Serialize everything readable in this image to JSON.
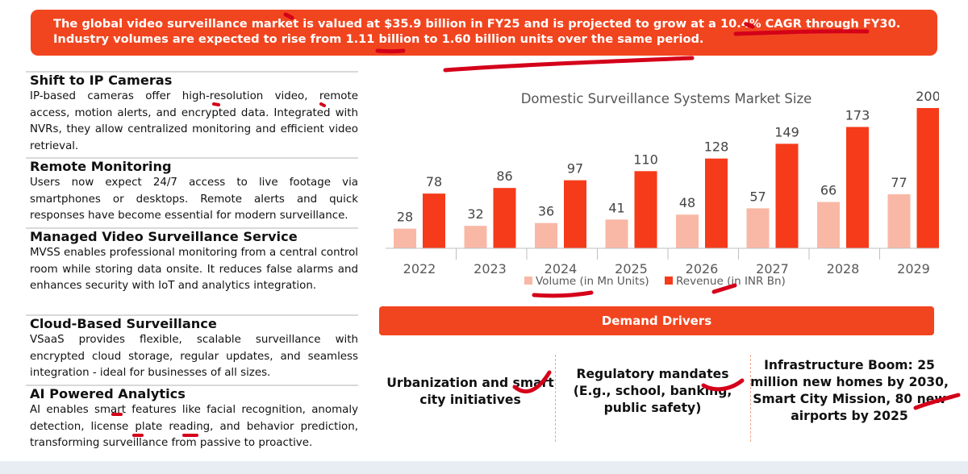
{
  "banner": {
    "line1": "The global video surveillance market is valued at $35.9 billion in FY25 and is projected to grow at a 10.4% CAGR through FY30.",
    "line2": "Industry volumes are expected to rise from 1.11 billion to 1.60 billion units over the same period."
  },
  "sections": [
    {
      "heading": "Shift to IP Cameras",
      "body": "IP-based cameras offer high-resolution video, remote access, motion alerts, and encrypted data. Integrated with NVRs, they allow centralized monitoring and efficient video retrieval."
    },
    {
      "heading": "Remote Monitoring",
      "body": "Users now expect 24/7 access to live footage via smartphones or desktops. Remote alerts and quick responses have become essential for modern surveillance."
    },
    {
      "heading": "Managed Video Surveillance Service",
      "body": "MVSS enables professional monitoring from a central control room while storing data onsite. It reduces false alarms and enhances security with IoT and analytics integration."
    },
    {
      "heading": "Cloud-Based Surveillance",
      "body": "VSaaS provides flexible, scalable surveillance with encrypted cloud storage, regular updates, and seamless integration - ideal for businesses of all sizes."
    },
    {
      "heading": "AI Powered Analytics",
      "body": "AI enables smart features like facial recognition, anomaly detection, license plate reading, and behavior prediction, transforming surveillance from passive to proactive."
    }
  ],
  "chart_data": {
    "type": "bar",
    "title": "Domestic Surveillance Systems Market Size",
    "categories": [
      "2022",
      "2023",
      "2024",
      "2025",
      "2026",
      "2027",
      "2028",
      "2029"
    ],
    "series": [
      {
        "name": "Volume (in Mn Units)",
        "values": [
          28,
          32,
          36,
          41,
          48,
          57,
          66,
          77
        ],
        "color": "#f9b8a6"
      },
      {
        "name": "Revenue (in INR Bn)",
        "values": [
          78,
          86,
          97,
          110,
          128,
          149,
          173,
          200
        ],
        "color": "#f53b1a"
      }
    ],
    "ylim": [
      0,
      200
    ],
    "grid": false,
    "legend": "bottom",
    "axis_label_color": "#595959"
  },
  "demand": {
    "title": "Demand Drivers",
    "drivers": [
      "Urbanization and smart city initiatives",
      "Regulatory mandates (E.g., school, banking, public safety)",
      "Infrastructure Boom: 25 million new homes by 2030, Smart City Mission, 80 new airports by 2025"
    ]
  },
  "colors": {
    "accent": "#f1451f",
    "annotation_ink": "#d4001a"
  }
}
